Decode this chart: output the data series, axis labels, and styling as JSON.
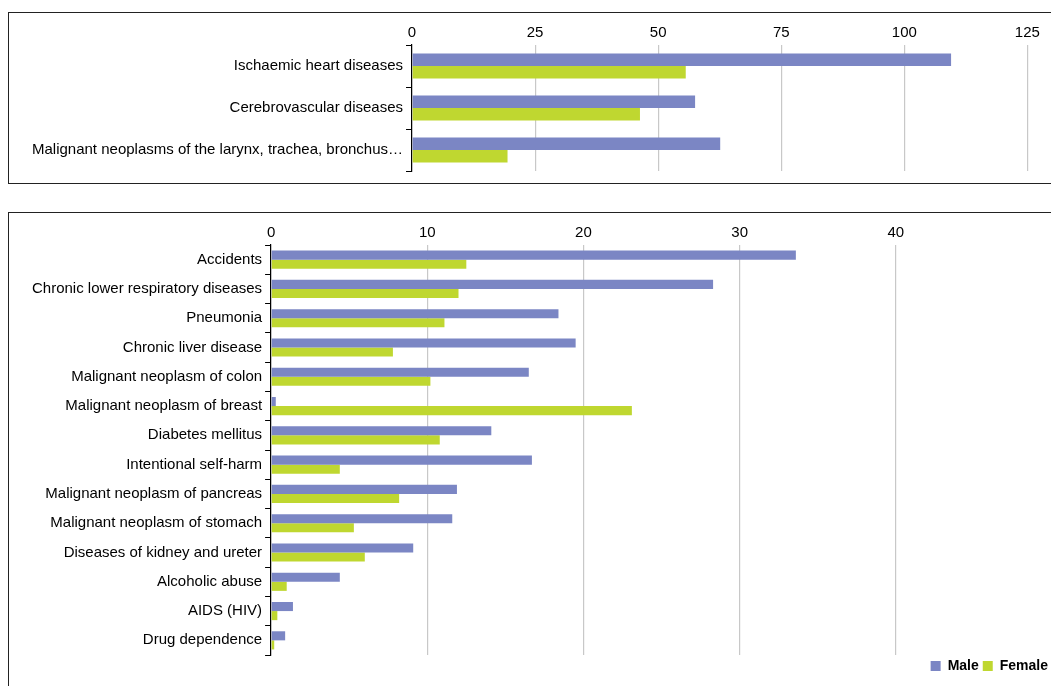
{
  "chart_data": [
    {
      "type": "bar",
      "orientation": "horizontal",
      "categories": [
        "Ischaemic heart diseases",
        "Cerebrovascular diseases",
        "Malignant neoplasms of the larynx, trachea, bronchus…"
      ],
      "series": [
        {
          "color": "#7b86c4",
          "values": [
            109.5,
            57.5,
            62.6
          ]
        },
        {
          "color": "#bfd730",
          "values": [
            55.6,
            46.3,
            19.4
          ]
        }
      ],
      "xlim": [
        0,
        130
      ],
      "xticks": [
        0,
        25,
        50,
        75,
        100,
        125
      ],
      "grid": "x",
      "legend": false
    },
    {
      "type": "bar",
      "orientation": "horizontal",
      "categories": [
        "Accidents",
        "Chronic lower respiratory diseases",
        "Pneumonia",
        "Chronic liver disease",
        "Malignant neoplasm of colon",
        "Malignant neoplasm of breast",
        "Diabetes mellitus",
        "Intentional self-harm",
        "Malignant neoplasm of pancreas",
        "Malignant neoplasm of stomach",
        "Diseases of kidney and ureter",
        "Alcoholic abuse",
        "AIDS (HIV)",
        "Drug dependence"
      ],
      "series": [
        {
          "name": "Male",
          "color": "#7b86c4",
          "values": [
            33.6,
            28.3,
            18.4,
            19.5,
            16.5,
            0.3,
            14.1,
            16.7,
            11.9,
            11.6,
            9.1,
            4.4,
            1.4,
            0.9
          ]
        },
        {
          "name": "Female",
          "color": "#bfd730",
          "values": [
            12.5,
            12.0,
            11.1,
            7.8,
            10.2,
            23.1,
            10.8,
            4.4,
            8.2,
            5.3,
            6.0,
            1.0,
            0.4,
            0.2
          ]
        }
      ],
      "xlim": [
        0,
        50
      ],
      "xticks": [
        0,
        10,
        20,
        30,
        40
      ],
      "grid": "x",
      "legend": "bottom right"
    }
  ]
}
